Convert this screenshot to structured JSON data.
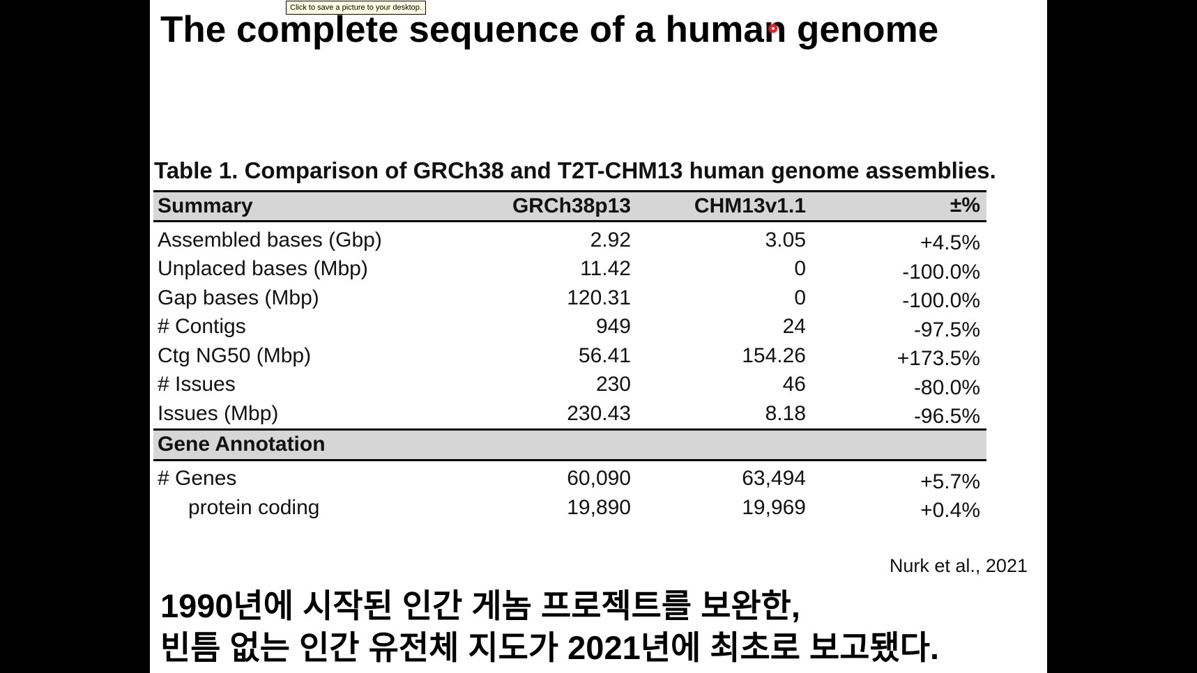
{
  "title": "The complete sequence of a human genome",
  "tooltip": "Click to save a picture to your desktop.",
  "table": {
    "caption": "Table 1. Comparison of GRCh38 and T2T-CHM13 human genome assemblies.",
    "headers": [
      "Summary",
      "GRCh38p13",
      "CHM13v1.1",
      "±%"
    ],
    "summary_rows": [
      {
        "label": "Assembled bases (Gbp)",
        "grch38": "2.92",
        "chm13": "3.05",
        "pct": "+4.5%"
      },
      {
        "label": "Unplaced bases (Mbp)",
        "grch38": "11.42",
        "chm13": "0",
        "pct": "-100.0%"
      },
      {
        "label": "Gap bases (Mbp)",
        "grch38": "120.31",
        "chm13": "0",
        "pct": "-100.0%"
      },
      {
        "label": "# Contigs",
        "grch38": "949",
        "chm13": "24",
        "pct": "-97.5%"
      },
      {
        "label": "Ctg NG50 (Mbp)",
        "grch38": "56.41",
        "chm13": "154.26",
        "pct": "+173.5%"
      },
      {
        "label": "# Issues",
        "grch38": "230",
        "chm13": "46",
        "pct": "-80.0%"
      },
      {
        "label": "Issues (Mbp)",
        "grch38": "230.43",
        "chm13": "8.18",
        "pct": "-96.5%"
      }
    ],
    "section_label": "Gene Annotation",
    "annotation_rows": [
      {
        "label": "# Genes",
        "grch38": "60,090",
        "chm13": "63,494",
        "pct": "+5.7%"
      },
      {
        "label": "protein coding",
        "grch38": "19,890",
        "chm13": "19,969",
        "pct": "+0.4%"
      }
    ]
  },
  "citation": "Nurk et al., 2021",
  "subtitle_lines": [
    "1990년에 시작된 인간 게놈 프로젝트를 보완한,",
    "빈틈 없는 인간 유전체 지도가 2021년에 최초로 보고됐다."
  ],
  "colors": {
    "background": "#000000",
    "slide": "#ffffff",
    "header_fill": "#d6d6d6",
    "pointer": "#e0232a"
  }
}
